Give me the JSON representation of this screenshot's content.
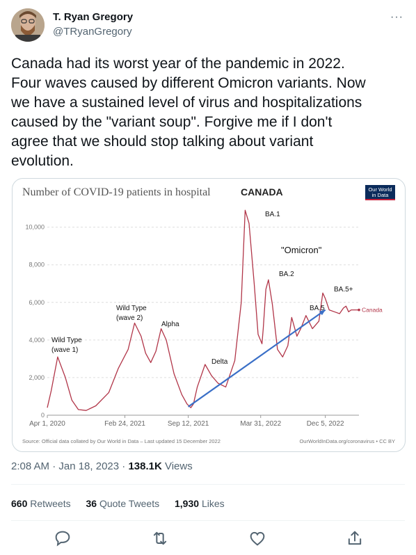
{
  "author": {
    "name": "T. Ryan Gregory",
    "handle": "@TRyanGregory"
  },
  "tweet": {
    "text": "Canada had its worst year of the pandemic in 2022.\nFour waves caused by different Omicron variants. Now\nwe have a sustained level of virus and hospitalizations\ncaused by the \"variant soup\". Forgive me if I don't\nagree that we should stop talking about variant\nevolution."
  },
  "meta": {
    "time": "2:08 AM · Jan 18, 2023 · ",
    "views_count": "138.1K",
    "views_label": " Views"
  },
  "stats": {
    "retweets_count": "660",
    "retweets_label": "Retweets",
    "quotes_count": "36",
    "quotes_label": "Quote Tweets",
    "likes_count": "1,930",
    "likes_label": "Likes"
  },
  "icons": [
    "avatar",
    "more-icon",
    "reply-icon",
    "retweet-icon",
    "like-icon",
    "share-icon",
    "owid-logo"
  ],
  "colors": {
    "series": "#b13548",
    "arrow": "#3a6fc7",
    "text_secondary": "#536471"
  },
  "chart_data": {
    "type": "line",
    "title": "Number of COVID-19 patients in hospital",
    "subtitle": "CANADA",
    "logo_text": [
      "Our World",
      "in Data"
    ],
    "y_ticks": [
      0,
      2000,
      4000,
      6000,
      8000,
      10000
    ],
    "y_tick_labels": [
      "0",
      "2,000",
      "4,000",
      "6,000",
      "8,000",
      "10,000"
    ],
    "ylim": [
      0,
      10800
    ],
    "x_tick_labels": [
      "Apr 1, 2020",
      "Feb 24, 2021",
      "Sep 12, 2021",
      "Mar 31, 2022",
      "Dec 5, 2022"
    ],
    "series": [
      {
        "name": "Canada",
        "x": [
          0,
          6,
          16,
          28,
          38,
          48,
          60,
          75,
          95,
          110,
          125,
          135,
          145,
          152,
          160,
          168,
          176,
          184,
          196,
          208,
          216,
          222,
          226,
          232,
          244,
          254,
          264,
          276,
          290,
          300,
          306,
          312,
          320,
          326,
          332,
          334,
          338,
          342,
          348,
          356,
          364,
          372,
          378,
          386,
          392,
          400,
          410,
          420,
          426,
          430,
          436,
          444,
          452,
          458,
          462,
          466,
          470,
          478,
          482
        ],
        "values": [
          400,
          1300,
          3100,
          2000,
          800,
          300,
          250,
          500,
          1200,
          2500,
          3500,
          4900,
          4200,
          3300,
          2800,
          3400,
          4600,
          4000,
          2200,
          1100,
          600,
          400,
          600,
          1500,
          2700,
          2100,
          1700,
          1500,
          2900,
          6000,
          10900,
          10200,
          7000,
          4300,
          3800,
          4600,
          6700,
          7200,
          5900,
          3500,
          3100,
          3700,
          5200,
          4200,
          4600,
          5300,
          4600,
          5000,
          6500,
          6200,
          5600,
          5500,
          5400,
          5700,
          5800,
          5500,
          5600,
          5600,
          5600
        ]
      }
    ],
    "annotations": [
      "Wild Type (wave 1)",
      "Wild Type (wave 2)",
      "Alpha",
      "Delta",
      "BA.1",
      "\"Omicron\"",
      "BA.2",
      "BA.5",
      "BA.5+"
    ],
    "annotation_lines": [
      [
        "Wild Type",
        "(wave 1)"
      ],
      [
        "Wild Type",
        "(wave 2)"
      ],
      [
        "Alpha"
      ],
      [
        "Delta"
      ],
      [
        "BA.1"
      ],
      [
        "\"Omicron\""
      ],
      [
        "BA.2"
      ],
      [
        "BA.5"
      ],
      [
        "BA.5+"
      ]
    ],
    "arrow": {
      "from": [
        218,
        450
      ],
      "to": [
        430,
        5600
      ]
    },
    "end_label": "Canada",
    "source": "Source: Official data collated by Our World in Data – Last updated 15 December 2022",
    "footer": "OurWorldInData.org/coronavirus • CC BY",
    "grid": true
  }
}
